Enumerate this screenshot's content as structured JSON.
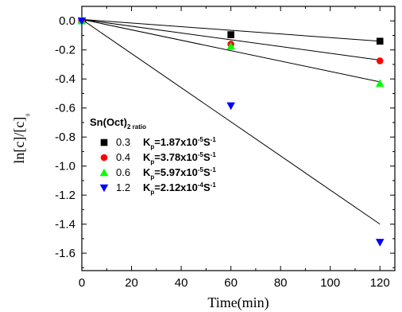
{
  "chart_data": {
    "type": "scatter",
    "xlabel": "Time(min)",
    "ylabel": "ln[c]/[c]₀",
    "xlim": [
      0,
      126
    ],
    "ylim": [
      -1.72,
      0.1
    ],
    "x_ticks": [
      "0",
      "20",
      "40",
      "60",
      "80",
      "100",
      "120"
    ],
    "y_ticks": [
      "0.0",
      "-0.2",
      "-0.4",
      "-0.6",
      "-0.8",
      "-1.0",
      "-1.2",
      "-1.4",
      "-1.6"
    ],
    "legend": {
      "title_main": "Sn(Oct)",
      "title_sub": "2 ratio",
      "placement": "center-left"
    },
    "series": [
      {
        "ratio": "0.3",
        "k_symbol": "K",
        "k_sub": "p",
        "k_value": "=1.87x10",
        "k_exp": "-5",
        "k_unit": "S",
        "k_unit_exp": "-1",
        "marker": "square",
        "color": "#000000",
        "x": [
          0,
          60,
          120
        ],
        "y": [
          0.0,
          -0.095,
          -0.14
        ],
        "fit": [
          [
            0,
            0.01
          ],
          [
            120,
            -0.14
          ]
        ]
      },
      {
        "ratio": "0.4",
        "k_symbol": "K",
        "k_sub": "p",
        "k_value": "=3.78x10",
        "k_exp": "-5",
        "k_unit": "S",
        "k_unit_exp": "-1",
        "marker": "circle",
        "color": "#ff0000",
        "x": [
          0,
          60,
          120
        ],
        "y": [
          0.0,
          -0.16,
          -0.275
        ],
        "fit": [
          [
            0,
            0.01
          ],
          [
            120,
            -0.27
          ]
        ]
      },
      {
        "ratio": "0.6",
        "k_symbol": "K",
        "k_sub": "p",
        "k_value": "=5.97x10",
        "k_exp": "-5",
        "k_unit": "S",
        "k_unit_exp": "-1",
        "marker": "triangle-up",
        "color": "#00ff00",
        "x": [
          0,
          60,
          120
        ],
        "y": [
          0.0,
          -0.175,
          -0.43
        ],
        "fit": [
          [
            0,
            0.01
          ],
          [
            120,
            -0.42
          ]
        ]
      },
      {
        "ratio": "1.2",
        "k_symbol": "K",
        "k_sub": "p",
        "k_value": "=2.12x10",
        "k_exp": "-4",
        "k_unit": "S",
        "k_unit_exp": "-1",
        "marker": "triangle-down",
        "color": "#0000ff",
        "x": [
          0,
          60,
          120
        ],
        "y": [
          0.0,
          -0.585,
          -1.525
        ],
        "fit": [
          [
            0,
            0.01
          ],
          [
            120,
            -1.4
          ]
        ]
      }
    ]
  }
}
